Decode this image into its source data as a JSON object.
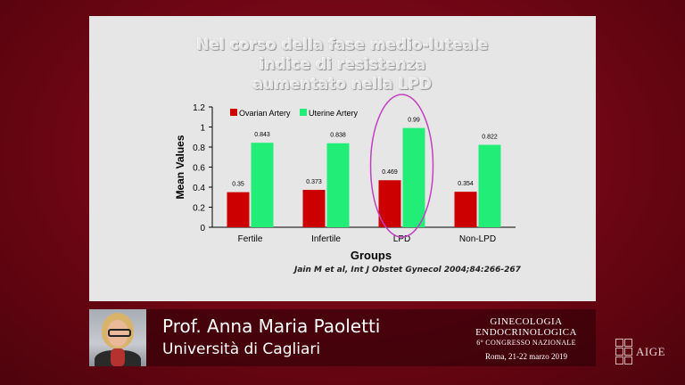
{
  "slide": {
    "title_lines": [
      "Nel corso della fase medio-luteale",
      "indice di resistenza",
      "aumentato nella LPD"
    ],
    "citation": "Jain M et al, Int J Obstet Gynecol 2004;84:266-267"
  },
  "chart_data": {
    "type": "bar",
    "categories": [
      "Fertile",
      "Infertile",
      "LPD",
      "Non-LPD"
    ],
    "series": [
      {
        "name": "Ovarian Artery",
        "values": [
          0.35,
          0.373,
          0.469,
          0.354
        ],
        "labels": [
          "0.35",
          "0.373",
          "0.469",
          "0.354"
        ],
        "color": "#cc0000"
      },
      {
        "name": "Uterine Artery",
        "values": [
          0.843,
          0.838,
          0.99,
          0.822
        ],
        "labels": [
          "0.843",
          "0.838",
          "0.99",
          "0.822"
        ],
        "color": "#22ee77"
      }
    ],
    "xlabel": "Groups",
    "ylabel": "Mean Values",
    "ylim": [
      0,
      1.2
    ],
    "yticks": [
      0,
      0.2,
      0.4,
      0.6,
      0.8,
      1,
      1.2
    ],
    "ytick_labels": [
      "0",
      "0.2",
      "0.4",
      "0.6",
      "0.8",
      "1",
      "1.2"
    ],
    "legend_position": "top-left",
    "highlight_category": "LPD",
    "highlight_color": "#c040c0",
    "grid": false
  },
  "lower_third": {
    "name": "Prof. Anna Maria Paoletti",
    "affiliation": "Università di Cagliari"
  },
  "event": {
    "line1": "GINECOLOGIA",
    "line2": "ENDOCRINOLOGICA",
    "line3": "6° CONGRESSO NAZIONALE",
    "line4": "Roma, 21-22 marzo 2019"
  },
  "logo": {
    "text": "AIGE"
  }
}
